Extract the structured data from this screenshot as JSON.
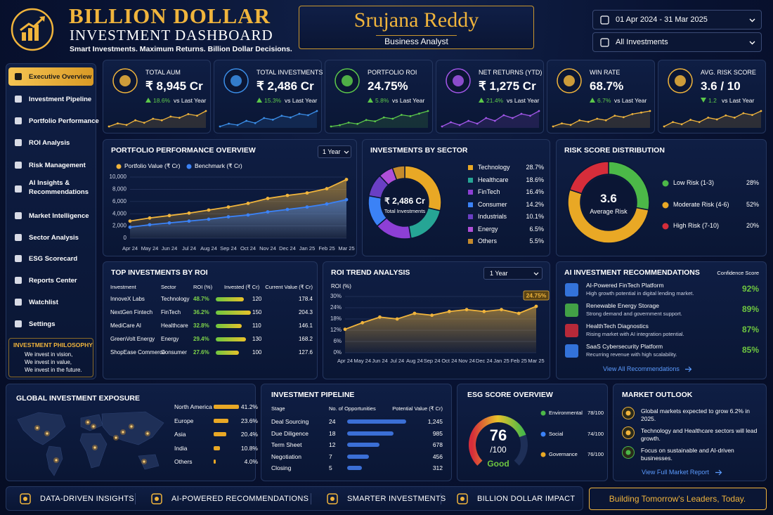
{
  "header": {
    "title": "BILLION DOLLAR",
    "subtitle": "INVESTMENT DASHBOARD",
    "tagline": "Smart Investments. Maximum Returns. Billion Dollar Decisions.",
    "name": "Srujana Reddy",
    "role": "Business Analyst",
    "date_range": "01 Apr 2024 - 31 Mar 2025",
    "filter": "All Investments"
  },
  "sidebar": {
    "items": [
      "Executive Overview",
      "Investment Pipeline",
      "Portfolio Performance",
      "ROI Analysis",
      "Risk Management",
      "AI Insights & Recommendations",
      "Market Intelligence",
      "Sector Analysis",
      "ESG Scorecard",
      "Reports Center",
      "Watchlist",
      "Settings"
    ],
    "active": 0,
    "philosophy": {
      "title": "INVESTMENT PHILOSOPHY",
      "lines": [
        "We invest in vision,",
        "We invest in value,",
        "We invest in the future."
      ]
    }
  },
  "kpis": [
    {
      "label": "TOTAL AUM",
      "value": "₹ 8,945 Cr",
      "change": "18.6%",
      "direction": "up",
      "note": "vs Last Year",
      "color": "#f0b43c",
      "spark": [
        3,
        4,
        3.5,
        5,
        4.2,
        5.5,
        5,
        6.2,
        5.8,
        7,
        6.5,
        8
      ]
    },
    {
      "label": "TOTAL INVESTMENTS",
      "value": "₹ 2,486 Cr",
      "change": "15.3%",
      "direction": "up",
      "note": "vs Last Year",
      "color": "#3b8ee8",
      "spark": [
        2,
        3,
        2.5,
        4,
        3.2,
        5,
        4.4,
        5.8,
        5.2,
        6.5,
        6,
        7.5
      ]
    },
    {
      "label": "PORTFOLIO ROI",
      "value": "24.75%",
      "change": "5.8%",
      "direction": "up",
      "note": "vs Last Year",
      "color": "#5cc94a",
      "spark": [
        2.5,
        3,
        4,
        3.5,
        5,
        4.5,
        6,
        5.5,
        7,
        6.5,
        7.5,
        8.5
      ]
    },
    {
      "label": "NET RETURNS (YTD)",
      "value": "₹ 1,275 Cr",
      "change": "21.4%",
      "direction": "up",
      "note": "vs Last Year",
      "color": "#a256e8",
      "spark": [
        3,
        4.5,
        3.5,
        5,
        4,
        6,
        5,
        7,
        6,
        7.5,
        6.8,
        8.5
      ]
    },
    {
      "label": "WIN RATE",
      "value": "68.7%",
      "change": "6.7%",
      "direction": "up",
      "note": "vs Last Year",
      "color": "#f0b43c",
      "spark": [
        2.5,
        3.5,
        3,
        4.5,
        4,
        5,
        4.5,
        6,
        5.5,
        6.5,
        7,
        7.5
      ]
    },
    {
      "label": "AVG. RISK SCORE",
      "value": "3.6 / 10",
      "change": "1.2",
      "direction": "down",
      "note": "vs Last Year",
      "color": "#f0b43c",
      "spark": [
        3,
        4,
        3.5,
        4.5,
        4,
        5,
        4.6,
        5.5,
        5,
        6,
        5.6,
        6.5
      ]
    }
  ],
  "chart_data": [
    {
      "type": "line",
      "title": "PORTFOLIO PERFORMANCE OVERVIEW",
      "period": "1 Year",
      "categories": [
        "Apr 24",
        "May 24",
        "Jun 24",
        "Jul 24",
        "Aug 24",
        "Sep 24",
        "Oct 24",
        "Nov 24",
        "Dec 24",
        "Jan 25",
        "Feb 25",
        "Mar 25"
      ],
      "series": [
        {
          "name": "Portfolio Value (₹ Cr)",
          "color": "#f0b43c",
          "values": [
            2800,
            3300,
            3700,
            4100,
            4600,
            5100,
            5700,
            6500,
            7000,
            7400,
            8100,
            9600
          ]
        },
        {
          "name": "Benchmark (₹ Cr)",
          "color": "#3b82f6",
          "values": [
            1800,
            2200,
            2500,
            2800,
            3100,
            3500,
            3800,
            4300,
            4700,
            5100,
            5600,
            6300
          ]
        }
      ],
      "ylim": [
        0,
        10000
      ],
      "yticks": [
        0,
        {
          "value": 2000,
          "label": "2,000"
        },
        {
          "value": 4000,
          "label": "4,000"
        },
        {
          "value": 6000,
          "label": "6,000"
        },
        {
          "value": 8000,
          "label": "8,000"
        },
        {
          "value": 10000,
          "label": "10,000"
        }
      ],
      "area": true,
      "grid": true
    },
    {
      "type": "pie",
      "title": "INVESTMENTS BY SECTOR",
      "center_value": "₹ 2,486 Cr",
      "center_label": "Total Investments",
      "categories": [
        "Technology",
        "Healthcare",
        "FinTech",
        "Consumer",
        "Industrials",
        "Energy",
        "Others"
      ],
      "values": [
        28.7,
        18.6,
        16.4,
        14.2,
        10.1,
        6.5,
        5.5
      ],
      "value_labels": [
        "28.7%",
        "18.6%",
        "16.4%",
        "14.2%",
        "10.1%",
        "6.5%",
        "5.5%"
      ],
      "colors": [
        "#e9a825",
        "#26a595",
        "#8d3fd6",
        "#3b82f6",
        "#6a3fc4",
        "#b04fd8",
        "#c48a2c"
      ]
    },
    {
      "type": "pie",
      "title": "RISK SCORE DISTRIBUTION",
      "center_value": "3.6",
      "center_label": "Average Risk",
      "categories": [
        "Low Risk (1-3)",
        "Moderate Risk (4-6)",
        "High Risk (7-10)"
      ],
      "values": [
        28,
        52,
        20
      ],
      "value_labels": [
        "28%",
        "52%",
        "20%"
      ],
      "colors": [
        "#4cb848",
        "#e9a825",
        "#d62d3a"
      ]
    },
    {
      "type": "line",
      "title": "ROI TREND ANALYSIS",
      "period": "1 Year",
      "y_label": "ROI (%)",
      "categories": [
        "Apr 24",
        "May 24",
        "Jun 24",
        "Jul 24",
        "Aug 24",
        "Sep 24",
        "Oct 24",
        "Nov 24",
        "Dec 24",
        "Jan 25",
        "Feb 25",
        "Mar 25"
      ],
      "values": [
        12.5,
        16,
        19,
        18,
        21,
        20,
        22,
        23,
        22,
        23,
        21,
        24.75
      ],
      "value_labels": [
        null,
        null,
        null,
        null,
        null,
        null,
        null,
        null,
        null,
        null,
        null,
        "24.75%"
      ],
      "color": "#f0b43c",
      "ylim": [
        0,
        30
      ],
      "yticks": [
        {
          "value": 0,
          "label": "0%"
        },
        {
          "value": 6,
          "label": "6%"
        },
        {
          "value": 12,
          "label": "12%"
        },
        {
          "value": 18,
          "label": "18%"
        },
        {
          "value": 24,
          "label": "24%"
        },
        {
          "value": 30,
          "label": "30%"
        }
      ],
      "area": true,
      "grid": true
    }
  ],
  "top_investments": {
    "title": "TOP INVESTMENTS BY ROI",
    "columns": [
      "Investment",
      "Sector",
      "ROI (%)",
      "Invested (₹ Cr)",
      "Current Value (₹ Cr)"
    ],
    "rows": [
      {
        "name": "InnoveX Labs",
        "sector": "Technology",
        "roi": "48.7%",
        "invested": 120,
        "current": 178.4
      },
      {
        "name": "NextGen Fintech",
        "sector": "FinTech",
        "roi": "36.2%",
        "invested": 150,
        "current": 204.3
      },
      {
        "name": "MediCare AI",
        "sector": "Healthcare",
        "roi": "32.8%",
        "invested": 110,
        "current": 146.1
      },
      {
        "name": "GreenVolt Energy",
        "sector": "Energy",
        "roi": "29.4%",
        "invested": 130,
        "current": 168.2
      },
      {
        "name": "ShopEase Commerce",
        "sector": "Consumer",
        "roi": "27.6%",
        "invested": 100,
        "current": 127.6
      }
    ]
  },
  "ai": {
    "title": "AI INVESTMENT RECOMMENDATIONS",
    "score_header": "Confidence Score",
    "link": "View All Recommendations",
    "items": [
      {
        "title": "AI-Powered FinTech Platform",
        "desc": "High growth potential in digital lending market.",
        "score": "92%",
        "color": "#3b82f6"
      },
      {
        "title": "Renewable Energy Storage",
        "desc": "Strong demand and government support.",
        "score": "89%",
        "color": "#4cb848"
      },
      {
        "title": "HealthTech Diagnostics",
        "desc": "Rising market with AI integration potential.",
        "score": "87%",
        "color": "#d62d3a"
      },
      {
        "title": "SaaS Cybersecurity Platform",
        "desc": "Recurring revenue with high scalability.",
        "score": "85%",
        "color": "#3b82f6"
      }
    ]
  },
  "global": {
    "title": "GLOBAL INVESTMENT EXPOSURE",
    "regions": [
      "North America",
      "Europe",
      "Asia",
      "India",
      "Others"
    ],
    "values": [
      41.2,
      23.6,
      20.4,
      10.8,
      4.0
    ],
    "value_labels": [
      "41.2%",
      "23.6%",
      "20.4%",
      "10.8%",
      "4.0%"
    ],
    "color": "#e9a825"
  },
  "pipeline": {
    "title": "INVESTMENT PIPELINE",
    "columns": [
      "Stage",
      "No. of Opportunities",
      "Potential Value (₹ Cr)"
    ],
    "rows": [
      {
        "stage": "Deal Sourcing",
        "count": 24,
        "value": {
          "value": 1245,
          "label": "1,245"
        }
      },
      {
        "stage": "Due Diligence",
        "count": 18,
        "value": 985
      },
      {
        "stage": "Term Sheet",
        "count": 12,
        "value": 678
      },
      {
        "stage": "Negotiation",
        "count": 7,
        "value": 456
      },
      {
        "stage": "Closing",
        "count": 5,
        "value": 312
      }
    ],
    "color": "#3b6fd6"
  },
  "esg": {
    "title": "ESG SCORE OVERVIEW",
    "score": 76,
    "max": {
      "value": 100,
      "label": "/100"
    },
    "rating": "Good",
    "items": [
      {
        "name": "Environmental",
        "score": "78/100",
        "color": "#4cb848"
      },
      {
        "name": "Social",
        "score": "74/100",
        "color": "#3b82f6"
      },
      {
        "name": "Governance",
        "score": "76/100",
        "color": "#e9a825"
      }
    ]
  },
  "outlook": {
    "title": "MARKET OUTLOOK",
    "items": [
      "Global markets expected to grow 6.2% in 2025.",
      "Technology and Healthcare sectors will lead growth.",
      "Focus on sustainable and AI-driven businesses."
    ],
    "link": "View Full Market Report"
  },
  "footer": {
    "items": [
      "DATA-DRIVEN INSIGHTS",
      "AI-POWERED RECOMMENDATIONS",
      "SMARTER INVESTMENTS",
      "BILLION DOLLAR IMPACT"
    ],
    "motto": "Building Tomorrow's Leaders, Today."
  }
}
